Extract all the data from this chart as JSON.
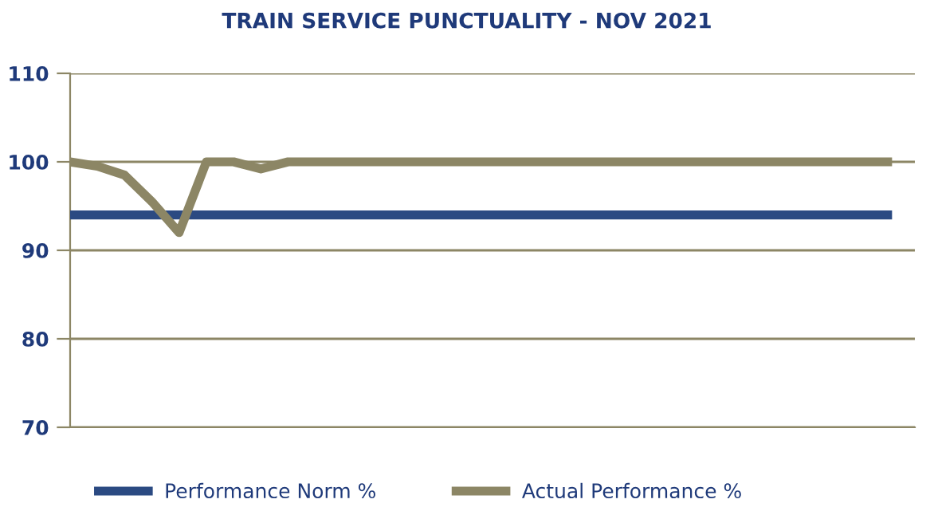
{
  "chart_data": {
    "type": "line",
    "title": "TRAIN SERVICE PUNCTUALITY - NOV 2021",
    "categories": [
      null,
      null,
      null,
      null,
      null,
      null,
      null,
      null,
      null,
      null,
      null,
      null,
      null,
      null,
      null,
      null,
      null,
      null,
      null,
      null,
      null,
      null,
      null,
      null,
      null,
      null,
      null,
      null,
      null,
      null,
      null,
      null
    ],
    "series": [
      {
        "name": "Performance Norm %",
        "color": "#2b4a82",
        "values": [
          94,
          94,
          94,
          94,
          94,
          94,
          94,
          94,
          94,
          94,
          94,
          94,
          94,
          94,
          94,
          94,
          94,
          94,
          94,
          94,
          94,
          94,
          94,
          94,
          94,
          94,
          94,
          94,
          94,
          94,
          94,
          null
        ]
      },
      {
        "name": "Actual Performance %",
        "color": "#8c8665",
        "values": [
          100,
          99.5,
          98.5,
          95.5,
          92,
          100,
          100,
          99.2,
          100,
          100,
          100,
          100,
          100,
          100,
          100,
          100,
          100,
          100,
          100,
          100,
          100,
          100,
          100,
          100,
          100,
          100,
          100,
          100,
          100,
          100,
          100,
          null
        ]
      }
    ],
    "ylim": [
      70,
      110
    ],
    "yticks": [
      70,
      80,
      90,
      100,
      110
    ],
    "grid": "y",
    "legend": "bottom",
    "tick_labels": "y",
    "marker": "none",
    "line_style": "solid"
  }
}
